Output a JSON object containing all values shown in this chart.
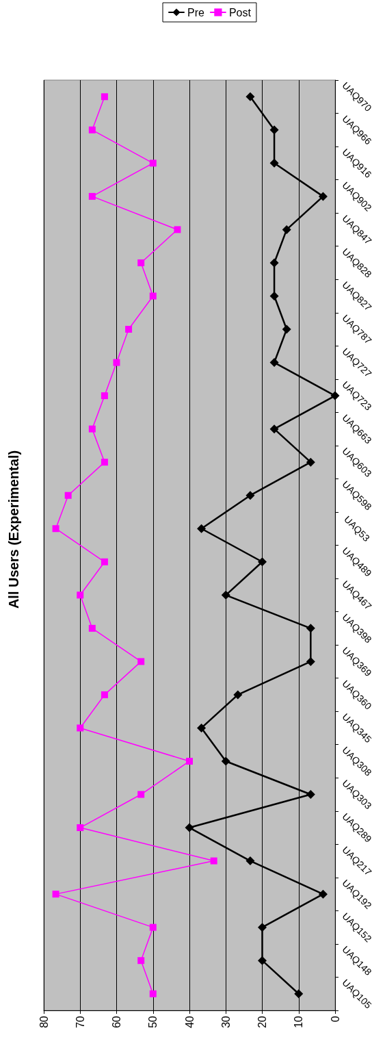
{
  "chart_data": {
    "type": "line",
    "title": "All Users (Experimental)",
    "orientation": "horizontal",
    "categories": [
      "UAQ970",
      "UAQ966",
      "UAQ916",
      "UAQ902",
      "UAQ847",
      "UAQ828",
      "UAQ827",
      "UAQ787",
      "UAQ727",
      "UAQ723",
      "UAQ663",
      "UAQ603",
      "UAQ598",
      "UAQ53",
      "UAQ489",
      "UAQ467",
      "UAQ398",
      "UAQ369",
      "UAQ360",
      "UAQ345",
      "UAQ308",
      "UAQ303",
      "UAQ289",
      "UAQ217",
      "UAQ192",
      "UAQ152",
      "UAQ148",
      "UAQ105"
    ],
    "series": [
      {
        "name": "Pre",
        "color": "#000000",
        "marker": "diamond",
        "values": [
          23.3,
          16.7,
          16.7,
          3.3,
          13.3,
          16.7,
          16.7,
          13.3,
          16.7,
          0,
          16.7,
          6.7,
          23.3,
          36.7,
          20,
          30,
          6.7,
          6.7,
          26.7,
          36.7,
          30,
          6.7,
          40,
          23.3,
          3.3,
          20,
          20,
          10
        ]
      },
      {
        "name": "Post",
        "color": "#ff00ff",
        "marker": "square",
        "values": [
          63.3,
          66.7,
          50,
          66.7,
          43.3,
          53.3,
          50,
          56.7,
          60,
          63.3,
          66.7,
          63.3,
          73.3,
          76.7,
          63.3,
          70,
          66.7,
          53.3,
          63.3,
          70,
          40,
          53.3,
          70,
          33.3,
          76.7,
          50,
          53.3,
          50
        ]
      }
    ],
    "xlim": [
      80,
      0
    ],
    "xticks": [
      80,
      70,
      60,
      50,
      40,
      30,
      20,
      10,
      0
    ],
    "grid": "x",
    "legend": "top",
    "line_style": "solid"
  }
}
